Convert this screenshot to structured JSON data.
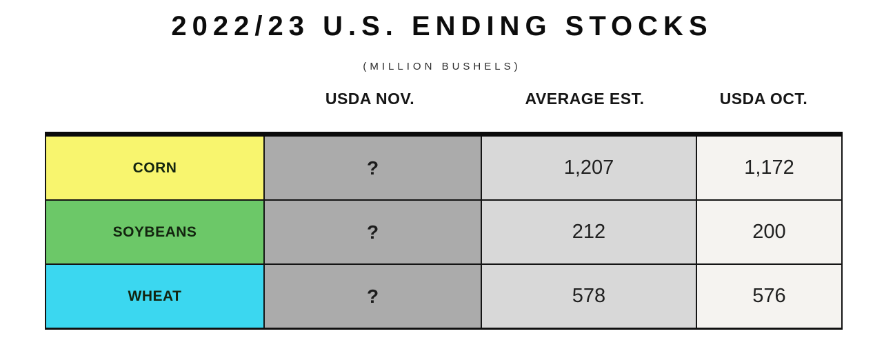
{
  "header": {
    "title": "2022/23 U.S. ENDING STOCKS",
    "subtitle": "(MILLION BUSHELS)"
  },
  "table": {
    "column_headers": [
      "USDA NOV.",
      "AVERAGE EST.",
      "USDA OCT."
    ],
    "column_colors": {
      "usda_nov": "#ababab",
      "average_est": "#d8d8d8",
      "usda_oct": "#f5f3f0"
    },
    "rows": [
      {
        "commodity": "CORN",
        "color": "#f8f56e",
        "usda_nov": "?",
        "average_est": "1,207",
        "usda_oct": "1,172"
      },
      {
        "commodity": "SOYBEANS",
        "color": "#6cc868",
        "usda_nov": "?",
        "average_est": "212",
        "usda_oct": "200"
      },
      {
        "commodity": "WHEAT",
        "color": "#3bd7f0",
        "usda_nov": "?",
        "average_est": "578",
        "usda_oct": "576"
      }
    ]
  },
  "chart_data": {
    "type": "table",
    "title": "2022/23 U.S. ENDING STOCKS",
    "subtitle": "(MILLION BUSHELS)",
    "unit": "million bushels",
    "categories": [
      "CORN",
      "SOYBEANS",
      "WHEAT"
    ],
    "series": [
      {
        "name": "USDA NOV.",
        "values": [
          "?",
          "?",
          "?"
        ]
      },
      {
        "name": "AVERAGE EST.",
        "values": [
          1207,
          212,
          578
        ]
      },
      {
        "name": "USDA OCT.",
        "values": [
          1172,
          200,
          576
        ]
      }
    ],
    "row_colors": [
      "#f8f56e",
      "#6cc868",
      "#3bd7f0"
    ],
    "column_fill_colors": [
      "#ababab",
      "#d8d8d8",
      "#f5f3f0"
    ],
    "layout": "commodity label column on left; unknown November value shown as question mark"
  }
}
